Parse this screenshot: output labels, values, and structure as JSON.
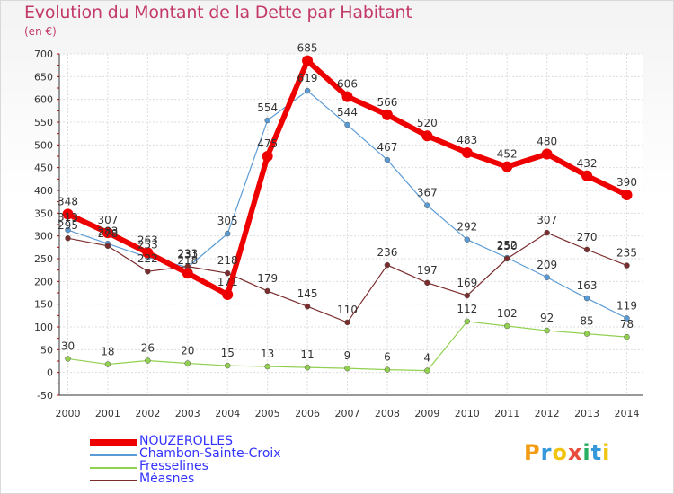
{
  "chart_data": {
    "type": "line",
    "title": "Evolution du Montant de la Dette par Habitant",
    "ylabel": "(en €)",
    "x": [
      "2000",
      "2001",
      "2002",
      "2003",
      "2004",
      "2005",
      "2006",
      "2007",
      "2008",
      "2009",
      "2010",
      "2011",
      "2012",
      "2013",
      "2014"
    ],
    "ylim": [
      -50,
      700
    ],
    "yticks": [
      -50,
      0,
      50,
      100,
      150,
      200,
      250,
      300,
      350,
      400,
      450,
      500,
      550,
      600,
      650,
      700
    ],
    "grid": true,
    "legend_position": "bottom-left",
    "series": [
      {
        "name": "NOUZEROLLES",
        "color": "#ee0000",
        "values": [
          348,
          307,
          263,
          218,
          171,
          475,
          685,
          606,
          566,
          520,
          483,
          452,
          480,
          432,
          390
        ]
      },
      {
        "name": "Chambon-Sainte-Croix",
        "color": "#5b9bd5",
        "values": [
          313,
          283,
          253,
          231,
          305,
          554,
          619,
          544,
          467,
          367,
          292,
          252,
          209,
          163,
          119
        ]
      },
      {
        "name": "Fresselines",
        "color": "#92d050",
        "values": [
          30,
          18,
          26,
          20,
          15,
          13,
          11,
          9,
          6,
          4,
          112,
          102,
          92,
          85,
          78
        ]
      },
      {
        "name": "Méasnes",
        "color": "#7b2c2c",
        "values": [
          295,
          278,
          222,
          233,
          218,
          179,
          145,
          110,
          236,
          197,
          169,
          250,
          307,
          270,
          235
        ]
      }
    ]
  },
  "logo": {
    "letters": [
      "P",
      "r",
      "o",
      "x",
      "i",
      "t",
      "i"
    ],
    "colors": [
      "#f39c12",
      "#3498db",
      "#f1c40f",
      "#e74c3c",
      "#27ae60",
      "#3498db",
      "#f1c40f"
    ]
  }
}
